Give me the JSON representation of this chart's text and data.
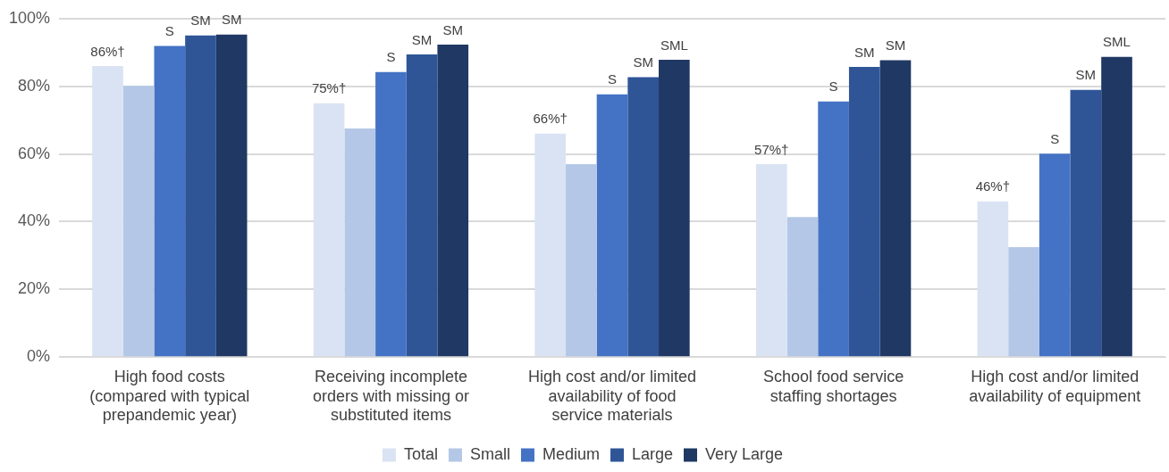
{
  "chart_data": {
    "type": "bar",
    "categories": [
      "High food costs (compared with typical prepandemic year)",
      "Receiving incomplete orders with missing or substituted items",
      "High cost and/or limited availability of food service materials",
      "School food service staffing shortages",
      "High cost and/or limited availability of equipment"
    ],
    "series": [
      {
        "name": "Total",
        "color": "#dae3f3",
        "values": [
          86,
          75,
          66,
          57,
          46
        ],
        "value_labels": [
          "86%†",
          "75%†",
          "66%†",
          "57%†",
          "46%†"
        ]
      },
      {
        "name": "Small",
        "color": "#b4c7e7",
        "values": [
          80.1,
          67.5,
          57.0,
          41.4,
          32.5
        ]
      },
      {
        "name": "Medium",
        "color": "#4472c4",
        "values": [
          91.9,
          84.2,
          77.6,
          75.5,
          60.1
        ],
        "value_labels": [
          "S",
          "S",
          "S",
          "S",
          "S"
        ]
      },
      {
        "name": "Large",
        "color": "#2f5597",
        "values": [
          95.0,
          89.4,
          82.7,
          85.7,
          78.9
        ],
        "value_labels": [
          "SM",
          "SM",
          "SM",
          "SM",
          "SM"
        ]
      },
      {
        "name": "Very Large",
        "color": "#203864",
        "values": [
          95.3,
          92.3,
          87.8,
          87.7,
          88.7
        ],
        "value_labels": [
          "SM",
          "SM",
          "SML",
          "SM",
          "SML"
        ]
      }
    ],
    "ylim": [
      0,
      100
    ],
    "yticks": [
      {
        "value": 0,
        "label": "0%"
      },
      {
        "value": 20,
        "label": "20%"
      },
      {
        "value": 40,
        "label": "40%"
      },
      {
        "value": 60,
        "label": "60%"
      },
      {
        "value": 80,
        "label": "80%"
      },
      {
        "value": 100,
        "label": "100%"
      }
    ],
    "grid": "y",
    "legend": "bottom"
  }
}
